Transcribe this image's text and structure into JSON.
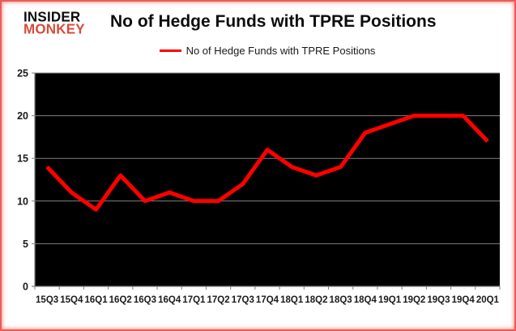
{
  "logo": {
    "line1": "INSIDER",
    "line2": "MONKEY"
  },
  "header": {
    "title": "No of Hedge Funds with TPRE Positions"
  },
  "legend": {
    "label": "No of Hedge Funds with TPRE Positions"
  },
  "colors": {
    "series_line": "#ff0000",
    "plot_background": "#000000",
    "gridline": "#808080",
    "axis": "#808080",
    "axis_text": "#1a1a1a",
    "logo_red": "#d74b3a",
    "frame_red": "#ee5a55"
  },
  "chart_data": {
    "type": "line",
    "title": "No of Hedge Funds with TPRE Positions",
    "legend_entries": [
      "No of Hedge Funds with TPRE Positions"
    ],
    "legend_position": "top",
    "grid": true,
    "categories": [
      "15Q3",
      "15Q4",
      "16Q1",
      "16Q2",
      "16Q3",
      "16Q4",
      "17Q1",
      "17Q2",
      "17Q3",
      "17Q4",
      "18Q1",
      "18Q2",
      "18Q3",
      "18Q4",
      "19Q1",
      "19Q2",
      "19Q3",
      "19Q4",
      "20Q1"
    ],
    "series": [
      {
        "name": "No of Hedge Funds with TPRE Positions",
        "values": [
          14,
          11,
          9,
          13,
          10,
          11,
          10,
          10,
          12,
          16,
          14,
          13,
          14,
          18,
          19,
          20,
          20,
          20,
          17
        ]
      }
    ],
    "xlabel": "",
    "ylabel": "",
    "ylim": [
      0,
      25
    ],
    "yticks": [
      0,
      5,
      10,
      15,
      20,
      25
    ]
  }
}
